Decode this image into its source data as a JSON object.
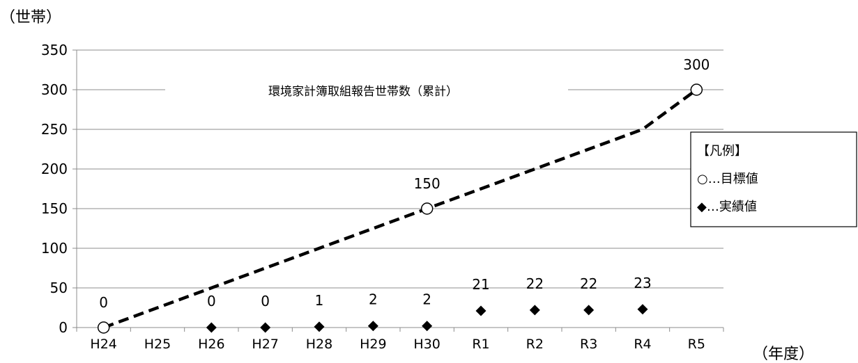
{
  "chart_data": {
    "type": "line",
    "title": "環境家計簿取組報告世帯数（累計）",
    "y_unit": "（世帯）",
    "x_unit": "（年度）",
    "categories": [
      "H24",
      "H25",
      "H26",
      "H27",
      "H28",
      "H29",
      "H30",
      "R1",
      "R2",
      "R3",
      "R4",
      "R5"
    ],
    "ylim": [
      0,
      350
    ],
    "yticks": [
      0,
      50,
      100,
      150,
      200,
      250,
      300,
      350
    ],
    "grid": true,
    "series": [
      {
        "name": "目標値",
        "style": "dashed-line-with-open-circle-markers",
        "color": "#000000",
        "values": [
          0,
          25,
          50,
          75,
          100,
          125,
          150,
          175,
          200,
          225,
          250,
          300
        ],
        "labeled_points": [
          {
            "category": "H24",
            "value": 0,
            "label": "0"
          },
          {
            "category": "H30",
            "value": 150,
            "label": "150"
          },
          {
            "category": "R5",
            "value": 300,
            "label": "300"
          }
        ]
      },
      {
        "name": "実績値",
        "style": "filled-diamond-markers",
        "color": "#000000",
        "points": [
          {
            "category": "H26",
            "value": 0,
            "label": "0"
          },
          {
            "category": "H27",
            "value": 0,
            "label": "0"
          },
          {
            "category": "H28",
            "value": 1,
            "label": "1"
          },
          {
            "category": "H29",
            "value": 2,
            "label": "2"
          },
          {
            "category": "H30",
            "value": 2,
            "label": "2"
          },
          {
            "category": "R1",
            "value": 21,
            "label": "21"
          },
          {
            "category": "R2",
            "value": 22,
            "label": "22"
          },
          {
            "category": "R3",
            "value": 22,
            "label": "22"
          },
          {
            "category": "R4",
            "value": 23,
            "label": "23"
          }
        ]
      }
    ],
    "legend": {
      "title": "【凡例】",
      "entries": [
        "○…目標値",
        "◆…実績値"
      ],
      "position": "right"
    }
  }
}
